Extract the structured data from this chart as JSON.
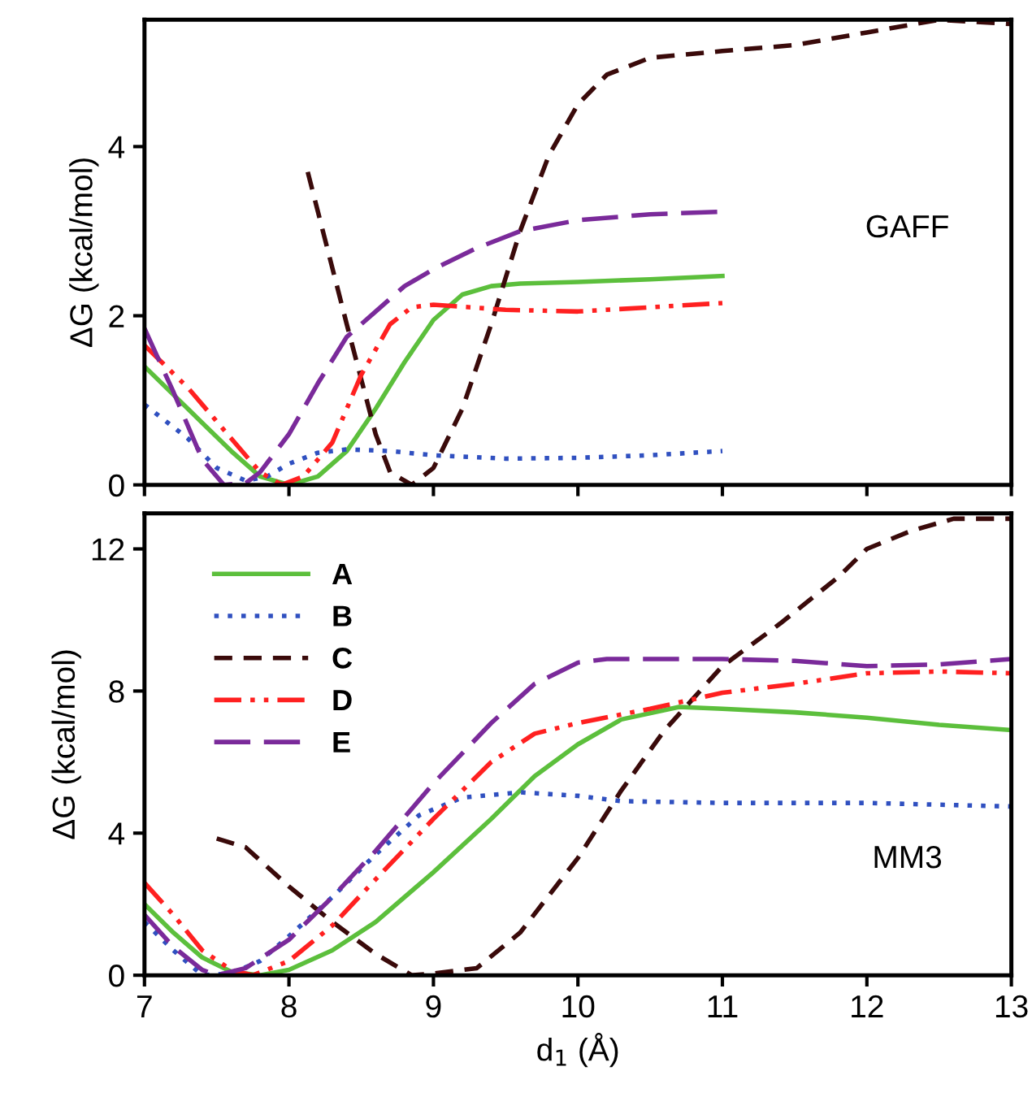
{
  "chart_data": [
    {
      "type": "line",
      "ylabel": "ΔG (kcal/mol)",
      "xlim": [
        7,
        13
      ],
      "xticks": [
        7,
        8,
        9,
        10,
        11,
        12,
        13
      ],
      "ylim": [
        0,
        5.5
      ],
      "yticks": [
        0,
        2,
        4
      ],
      "tick_labels": "y",
      "grid": false,
      "legend": false,
      "marker": "none",
      "annotations": [
        "GAFF"
      ],
      "series": [
        {
          "color": "#5cbf3c",
          "line_style": "solid",
          "x": [
            7,
            7.3,
            7.6,
            7.8,
            8.0,
            8.2,
            8.4,
            8.6,
            8.8,
            9.0,
            9.2,
            9.4,
            9.6,
            10,
            10.5,
            11
          ],
          "values": [
            1.4,
            0.9,
            0.4,
            0.1,
            0.0,
            0.1,
            0.4,
            0.9,
            1.45,
            1.95,
            2.25,
            2.35,
            2.38,
            2.4,
            2.43,
            2.47
          ]
        },
        {
          "color": "#3050c0",
          "line_style": "dotted",
          "x": [
            7,
            7.3,
            7.5,
            7.7,
            7.85,
            8.0,
            8.2,
            8.4,
            8.7,
            9.0,
            9.5,
            10,
            10.5,
            11
          ],
          "values": [
            0.95,
            0.55,
            0.2,
            0.05,
            0.1,
            0.25,
            0.38,
            0.42,
            0.4,
            0.35,
            0.31,
            0.32,
            0.35,
            0.4
          ]
        },
        {
          "color": "#3a0a0a",
          "line_style": "dashed",
          "x": [
            8.13,
            8.4,
            8.6,
            8.7,
            8.85,
            9.0,
            9.2,
            9.4,
            9.6,
            9.8,
            10.0,
            10.2,
            10.5,
            11,
            11.5,
            12,
            12.5,
            13
          ],
          "values": [
            3.7,
            1.9,
            0.6,
            0.15,
            0.0,
            0.2,
            0.9,
            1.9,
            3.0,
            3.9,
            4.5,
            4.85,
            5.05,
            5.13,
            5.2,
            5.35,
            5.5,
            5.45
          ]
        },
        {
          "color": "#ff2020",
          "line_style": "dashdotdot",
          "x": [
            7,
            7.3,
            7.6,
            7.8,
            7.95,
            8.1,
            8.3,
            8.5,
            8.7,
            8.85,
            9.0,
            9.5,
            10,
            10.5,
            11
          ],
          "values": [
            1.65,
            1.15,
            0.55,
            0.15,
            0.0,
            0.1,
            0.5,
            1.3,
            1.9,
            2.1,
            2.13,
            2.07,
            2.05,
            2.1,
            2.15
          ]
        },
        {
          "color": "#7a2a9a",
          "line_style": "longdash",
          "x": [
            7,
            7.2,
            7.4,
            7.55,
            7.7,
            7.8,
            8.0,
            8.2,
            8.4,
            8.6,
            8.8,
            9.0,
            9.3,
            9.6,
            10.0,
            10.5,
            11
          ],
          "values": [
            1.85,
            1.1,
            0.3,
            0.0,
            0.02,
            0.15,
            0.6,
            1.2,
            1.75,
            2.05,
            2.35,
            2.55,
            2.8,
            3.0,
            3.13,
            3.2,
            3.23
          ]
        }
      ]
    },
    {
      "type": "line",
      "xlabel": "d$_{1}$ (Å)",
      "ylabel": "ΔG (kcal/mol)",
      "xlim": [
        7,
        13
      ],
      "xticks": [
        7,
        8,
        9,
        10,
        11,
        12,
        13
      ],
      "ylim": [
        0,
        13
      ],
      "yticks": [
        0,
        4,
        8,
        12
      ],
      "grid": false,
      "legend": "top left",
      "marker": "none",
      "annotations": [
        "MM3"
      ],
      "series": [
        {
          "name": "A",
          "color": "#5cbf3c",
          "line_style": "solid",
          "x": [
            7,
            7.2,
            7.4,
            7.6,
            7.8,
            8.0,
            8.3,
            8.6,
            9.0,
            9.4,
            9.7,
            10.0,
            10.3,
            10.7,
            11,
            11.5,
            12,
            12.5,
            13
          ],
          "values": [
            2.0,
            1.2,
            0.5,
            0.1,
            0.0,
            0.15,
            0.7,
            1.5,
            2.9,
            4.4,
            5.6,
            6.5,
            7.2,
            7.55,
            7.5,
            7.4,
            7.25,
            7.05,
            6.9
          ]
        },
        {
          "name": "B",
          "color": "#3050c0",
          "line_style": "dotted",
          "x": [
            7,
            7.2,
            7.4,
            7.6,
            7.8,
            8.0,
            8.3,
            8.6,
            8.9,
            9.2,
            9.6,
            10,
            10.3,
            11,
            12,
            13
          ],
          "values": [
            1.5,
            0.7,
            0.0,
            0.05,
            0.4,
            1.1,
            2.2,
            3.4,
            4.5,
            5.0,
            5.15,
            5.05,
            4.9,
            4.85,
            4.85,
            4.75
          ]
        },
        {
          "name": "C",
          "color": "#3a0a0a",
          "line_style": "dashed",
          "x": [
            7.5,
            7.7,
            8.0,
            8.3,
            8.6,
            8.85,
            9.0,
            9.3,
            9.6,
            10.0,
            10.3,
            10.6,
            11.0,
            11.4,
            11.8,
            12.0,
            12.3,
            12.6,
            13
          ],
          "values": [
            3.85,
            3.6,
            2.5,
            1.5,
            0.6,
            0.0,
            0.05,
            0.2,
            1.2,
            3.3,
            5.2,
            6.9,
            8.7,
            9.9,
            11.2,
            12.0,
            12.5,
            12.85,
            12.85
          ]
        },
        {
          "name": "D",
          "color": "#ff2020",
          "line_style": "dashdotdot",
          "x": [
            7,
            7.2,
            7.4,
            7.6,
            7.75,
            8.0,
            8.3,
            8.6,
            9.0,
            9.4,
            9.7,
            10.0,
            10.5,
            11,
            11.5,
            12,
            12.5,
            13
          ],
          "values": [
            2.6,
            1.7,
            0.7,
            0.15,
            0.0,
            0.4,
            1.4,
            2.7,
            4.4,
            6.0,
            6.8,
            7.1,
            7.5,
            7.95,
            8.2,
            8.5,
            8.55,
            8.5
          ]
        },
        {
          "name": "E",
          "color": "#7a2a9a",
          "line_style": "longdash",
          "x": [
            7,
            7.2,
            7.4,
            7.5,
            7.7,
            8.0,
            8.3,
            8.6,
            9.0,
            9.4,
            9.7,
            10.0,
            10.2,
            11,
            11.5,
            12,
            12.5,
            13
          ],
          "values": [
            1.7,
            0.8,
            0.15,
            0.0,
            0.2,
            1.0,
            2.2,
            3.5,
            5.4,
            7.1,
            8.2,
            8.8,
            8.9,
            8.9,
            8.85,
            8.7,
            8.75,
            8.9
          ]
        }
      ]
    }
  ]
}
